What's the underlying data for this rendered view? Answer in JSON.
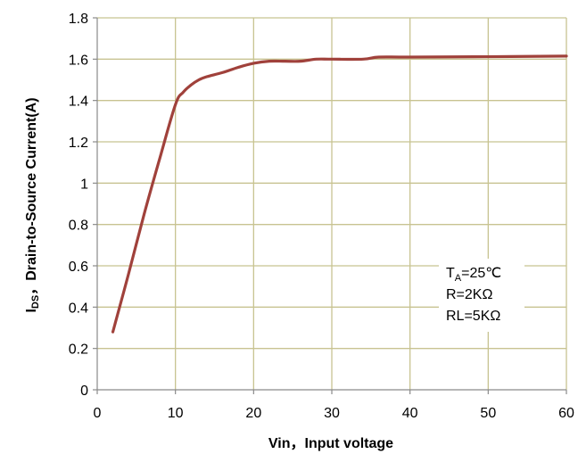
{
  "chart_data": {
    "type": "line",
    "xlabel": "Vin，Input voltage",
    "ylabel": "IDS，Drain-to-Source Current(A)",
    "ylabel_sub": "DS",
    "ylabel_main": "I",
    "ylabel_rest": "，Drain-to-Source Current(A)",
    "xlim": [
      0,
      60
    ],
    "ylim": [
      0,
      1.8
    ],
    "xticks": [
      "0",
      "10",
      "20",
      "30",
      "40",
      "50",
      "60"
    ],
    "yticks": [
      "0",
      "0.2",
      "0.4",
      "0.6",
      "0.8",
      "1",
      "1.2",
      "1.4",
      "1.6",
      "1.8"
    ],
    "grid": true,
    "series": [
      {
        "color": "#a0413b",
        "x": [
          2,
          4,
          6,
          8,
          10,
          11,
          12,
          13,
          14,
          16,
          18,
          20,
          22,
          24,
          26,
          28,
          30,
          34,
          36,
          40,
          50,
          60
        ],
        "y": [
          0.28,
          0.56,
          0.85,
          1.12,
          1.38,
          1.44,
          1.475,
          1.5,
          1.515,
          1.535,
          1.56,
          1.58,
          1.59,
          1.59,
          1.59,
          1.6,
          1.6,
          1.6,
          1.61,
          1.61,
          1.612,
          1.615
        ]
      }
    ],
    "annotation": {
      "t_main": "T",
      "t_sub": "A",
      "t_rest": "=25℃",
      "line2": "R=2KΩ",
      "line3": "RL=5KΩ"
    }
  }
}
